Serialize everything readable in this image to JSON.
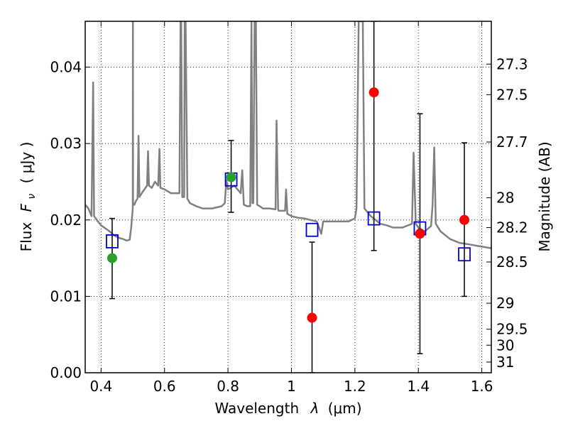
{
  "chart_data": {
    "type": "scatter",
    "title": "",
    "xlabel": {
      "text": "Wavelength",
      "symbol": "λ",
      "unit": "(μm)"
    },
    "ylabel": {
      "text": "Flux",
      "symbol": "F",
      "subscript": "ν",
      "unit": "( μJy )"
    },
    "y2label": "Magnitude (AB)",
    "xlim": [
      0.35,
      1.63
    ],
    "ylim": [
      0.0,
      0.046
    ],
    "grid": true,
    "x_ticks": [
      0.4,
      0.6,
      0.8,
      1.0,
      1.2,
      1.4,
      1.6
    ],
    "x_tick_labels": [
      "0.4",
      "0.6",
      "0.8",
      "1",
      "1.2",
      "1.4",
      "1.6"
    ],
    "y_ticks": [
      0.0,
      0.01,
      0.02,
      0.03,
      0.04
    ],
    "y_tick_labels": [
      "0.00",
      "0.01",
      "0.02",
      "0.03",
      "0.04"
    ],
    "magnitude_ticks": [
      {
        "label": "27.3",
        "flux": 0.0404
      },
      {
        "label": "27.5",
        "flux": 0.0364
      },
      {
        "label": "27.7",
        "flux": 0.0302
      },
      {
        "label": "28",
        "flux": 0.0229
      },
      {
        "label": "28.2",
        "flux": 0.019
      },
      {
        "label": "28.5",
        "flux": 0.0145
      },
      {
        "label": "29",
        "flux": 0.0091
      },
      {
        "label": "29.5",
        "flux": 0.0057
      },
      {
        "label": "30",
        "flux": 0.0036
      },
      {
        "label": "31",
        "flux": 0.0014
      }
    ],
    "colors": {
      "spectrum": "#808080",
      "model_photometry": "#0000cc",
      "green_points": "#2ca02c",
      "red_points": "#ff0000",
      "error_bars": "#000000"
    },
    "series": [
      {
        "kind": "spectrum",
        "points": [
          [
            0.35,
            0.022
          ],
          [
            0.36,
            0.0215
          ],
          [
            0.37,
            0.0205
          ],
          [
            0.375,
            0.038
          ],
          [
            0.378,
            0.0205
          ],
          [
            0.39,
            0.0198
          ],
          [
            0.4,
            0.0193
          ],
          [
            0.41,
            0.019
          ],
          [
            0.42,
            0.0187
          ],
          [
            0.43,
            0.0184
          ],
          [
            0.44,
            0.018
          ],
          [
            0.45,
            0.0178
          ],
          [
            0.46,
            0.0176
          ],
          [
            0.47,
            0.0175
          ],
          [
            0.48,
            0.0173
          ],
          [
            0.49,
            0.0174
          ],
          [
            0.495,
            0.019
          ],
          [
            0.5,
            0.0215
          ],
          [
            0.5003,
            0.046
          ],
          [
            0.5008,
            0.022
          ],
          [
            0.505,
            0.022
          ],
          [
            0.51,
            0.0225
          ],
          [
            0.515,
            0.0228
          ],
          [
            0.518,
            0.031
          ],
          [
            0.521,
            0.023
          ],
          [
            0.53,
            0.0236
          ],
          [
            0.545,
            0.0245
          ],
          [
            0.548,
            0.029
          ],
          [
            0.551,
            0.0245
          ],
          [
            0.56,
            0.0242
          ],
          [
            0.57,
            0.025
          ],
          [
            0.58,
            0.0245
          ],
          [
            0.584,
            0.0293
          ],
          [
            0.587,
            0.0242
          ],
          [
            0.6,
            0.024
          ],
          [
            0.62,
            0.0235
          ],
          [
            0.64,
            0.0235
          ],
          [
            0.647,
            0.0235
          ],
          [
            0.6505,
            0.046
          ],
          [
            0.6525,
            0.046
          ],
          [
            0.656,
            0.023
          ],
          [
            0.662,
            0.023
          ],
          [
            0.6635,
            0.046
          ],
          [
            0.6665,
            0.046
          ],
          [
            0.672,
            0.0228
          ],
          [
            0.68,
            0.0222
          ],
          [
            0.7,
            0.0218
          ],
          [
            0.72,
            0.0215
          ],
          [
            0.75,
            0.0215
          ],
          [
            0.78,
            0.0218
          ],
          [
            0.79,
            0.0222
          ],
          [
            0.795,
            0.0252
          ],
          [
            0.8,
            0.024
          ],
          [
            0.82,
            0.0245
          ],
          [
            0.84,
            0.0235
          ],
          [
            0.845,
            0.0265
          ],
          [
            0.85,
            0.022
          ],
          [
            0.86,
            0.0218
          ],
          [
            0.87,
            0.0218
          ],
          [
            0.874,
            0.046
          ],
          [
            0.877,
            0.0222
          ],
          [
            0.88,
            0.0222
          ],
          [
            0.884,
            0.046
          ],
          [
            0.888,
            0.046
          ],
          [
            0.892,
            0.022
          ],
          [
            0.9,
            0.0218
          ],
          [
            0.91,
            0.0215
          ],
          [
            0.93,
            0.0215
          ],
          [
            0.95,
            0.0214
          ],
          [
            0.953,
            0.033
          ],
          [
            0.958,
            0.0214
          ],
          [
            0.96,
            0.0212
          ],
          [
            0.98,
            0.0212
          ],
          [
            0.983,
            0.024
          ],
          [
            0.987,
            0.0208
          ],
          [
            1.0,
            0.0205
          ],
          [
            1.02,
            0.0203
          ],
          [
            1.04,
            0.0202
          ],
          [
            1.06,
            0.02
          ],
          [
            1.08,
            0.0198
          ],
          [
            1.094,
            0.0182
          ],
          [
            1.1,
            0.0198
          ],
          [
            1.12,
            0.0198
          ],
          [
            1.15,
            0.0198
          ],
          [
            1.18,
            0.0198
          ],
          [
            1.2,
            0.0202
          ],
          [
            1.205,
            0.0215
          ],
          [
            1.212,
            0.046
          ],
          [
            1.225,
            0.046
          ],
          [
            1.23,
            0.0215
          ],
          [
            1.25,
            0.0205
          ],
          [
            1.28,
            0.0195
          ],
          [
            1.3,
            0.0193
          ],
          [
            1.32,
            0.019
          ],
          [
            1.35,
            0.019
          ],
          [
            1.38,
            0.0195
          ],
          [
            1.385,
            0.0288
          ],
          [
            1.392,
            0.0195
          ],
          [
            1.4,
            0.019
          ],
          [
            1.42,
            0.0185
          ],
          [
            1.44,
            0.0192
          ],
          [
            1.445,
            0.022
          ],
          [
            1.45,
            0.0295
          ],
          [
            1.455,
            0.0195
          ],
          [
            1.47,
            0.0185
          ],
          [
            1.5,
            0.0175
          ],
          [
            1.53,
            0.017
          ],
          [
            1.56,
            0.0168
          ],
          [
            1.6,
            0.0165
          ],
          [
            1.63,
            0.0163
          ]
        ]
      },
      {
        "kind": "model_photometry",
        "points": [
          {
            "x": 0.435,
            "y": 0.0172
          },
          {
            "x": 0.81,
            "y": 0.0253
          },
          {
            "x": 1.065,
            "y": 0.0187
          },
          {
            "x": 1.26,
            "y": 0.0202
          },
          {
            "x": 1.405,
            "y": 0.0189
          },
          {
            "x": 1.545,
            "y": 0.0155
          }
        ]
      },
      {
        "kind": "green_points",
        "points": [
          {
            "x": 0.435,
            "y": 0.015,
            "ylow": 0.0097,
            "yhigh": 0.0202
          },
          {
            "x": 0.81,
            "y": 0.0256,
            "ylow": 0.021,
            "yhigh": 0.0304
          }
        ]
      },
      {
        "kind": "red_points",
        "points": [
          {
            "x": 1.065,
            "y": 0.0072,
            "ylow": 0.0,
            "yhigh": 0.0171
          },
          {
            "x": 1.26,
            "y": 0.0367,
            "ylow": 0.016,
            "yhigh": 0.046
          },
          {
            "x": 1.405,
            "y": 0.0182,
            "ylow": 0.0025,
            "yhigh": 0.0339
          },
          {
            "x": 1.545,
            "y": 0.02,
            "ylow": 0.01,
            "yhigh": 0.0301
          }
        ]
      }
    ]
  }
}
